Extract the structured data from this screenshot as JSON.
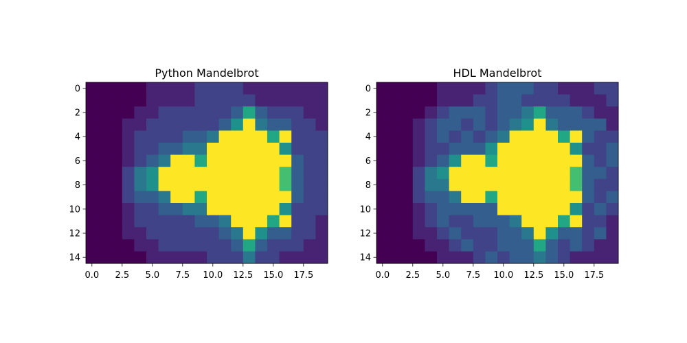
{
  "chart_data": [
    {
      "type": "heatmap",
      "title": "Python Mandelbrot",
      "xlabel": "",
      "ylabel": "",
      "xlim": [
        -0.5,
        19.5
      ],
      "ylim": [
        14.5,
        -0.5
      ],
      "xticks": [
        "0.0",
        "2.5",
        "5.0",
        "7.5",
        "10.0",
        "12.5",
        "15.0",
        "17.5"
      ],
      "yticks": [
        "0",
        "2",
        "4",
        "6",
        "8",
        "10",
        "12",
        "14"
      ],
      "colormap": "viridis",
      "vmin": 0,
      "vmax": 10,
      "values": [
        [
          0,
          0,
          0,
          0,
          0,
          1,
          1,
          1,
          1,
          2,
          2,
          2,
          2,
          1,
          1,
          1,
          1,
          1,
          1,
          1
        ],
        [
          0,
          0,
          0,
          0,
          0,
          1,
          1,
          1,
          1,
          2,
          2,
          2,
          2,
          2,
          1,
          1,
          1,
          1,
          1,
          1
        ],
        [
          0,
          0,
          0,
          0,
          1,
          1,
          2,
          2,
          2,
          2,
          2,
          2,
          3,
          6,
          3,
          2,
          2,
          2,
          1,
          1
        ],
        [
          0,
          0,
          0,
          1,
          1,
          2,
          2,
          2,
          2,
          2,
          2,
          3,
          5,
          10,
          4,
          3,
          3,
          2,
          2,
          1
        ],
        [
          0,
          0,
          0,
          1,
          2,
          2,
          2,
          2,
          3,
          3,
          4,
          10,
          10,
          10,
          10,
          6,
          10,
          2,
          2,
          2
        ],
        [
          0,
          0,
          0,
          1,
          2,
          2,
          3,
          3,
          4,
          4,
          10,
          10,
          10,
          10,
          10,
          10,
          5,
          2,
          2,
          2
        ],
        [
          0,
          0,
          0,
          1,
          2,
          3,
          4,
          10,
          10,
          6,
          10,
          10,
          10,
          10,
          10,
          10,
          10,
          3,
          2,
          2
        ],
        [
          0,
          0,
          0,
          2,
          4,
          5,
          10,
          10,
          10,
          10,
          10,
          10,
          10,
          10,
          10,
          10,
          7,
          3,
          2,
          2
        ],
        [
          0,
          0,
          0,
          2,
          4,
          5,
          10,
          10,
          10,
          10,
          10,
          10,
          10,
          10,
          10,
          10,
          7,
          3,
          2,
          2
        ],
        [
          0,
          0,
          0,
          2,
          3,
          3,
          4,
          10,
          10,
          6,
          10,
          10,
          10,
          10,
          10,
          10,
          10,
          3,
          2,
          2
        ],
        [
          0,
          0,
          0,
          1,
          2,
          2,
          3,
          3,
          4,
          4,
          10,
          10,
          10,
          10,
          10,
          10,
          5,
          2,
          2,
          2
        ],
        [
          0,
          0,
          0,
          1,
          2,
          2,
          2,
          2,
          2,
          3,
          3,
          4,
          10,
          10,
          10,
          6,
          10,
          2,
          2,
          1
        ],
        [
          0,
          0,
          0,
          1,
          1,
          2,
          2,
          2,
          2,
          2,
          2,
          3,
          4,
          10,
          5,
          3,
          3,
          2,
          2,
          1
        ],
        [
          0,
          0,
          0,
          0,
          1,
          1,
          2,
          2,
          2,
          2,
          2,
          2,
          3,
          6,
          3,
          2,
          2,
          2,
          1,
          1
        ],
        [
          0,
          0,
          0,
          0,
          0,
          1,
          1,
          1,
          1,
          1,
          2,
          2,
          2,
          4,
          2,
          2,
          1,
          1,
          1,
          1
        ]
      ]
    },
    {
      "type": "heatmap",
      "title": "HDL Mandelbrot",
      "xlabel": "",
      "ylabel": "",
      "xlim": [
        -0.5,
        19.5
      ],
      "ylim": [
        14.5,
        -0.5
      ],
      "xticks": [
        "0.0",
        "2.5",
        "5.0",
        "7.5",
        "10.0",
        "12.5",
        "15.0",
        "17.5"
      ],
      "yticks": [
        "0",
        "2",
        "4",
        "6",
        "8",
        "10",
        "12",
        "14"
      ],
      "colormap": "viridis",
      "vmin": 0,
      "vmax": 10,
      "values": [
        [
          0,
          0,
          0,
          0,
          0,
          1,
          1,
          1,
          1,
          2,
          3,
          3,
          3,
          2,
          2,
          1,
          1,
          1,
          2,
          2
        ],
        [
          0,
          0,
          0,
          0,
          0,
          1,
          1,
          1,
          2,
          2,
          3,
          3,
          2,
          2,
          2,
          2,
          1,
          1,
          1,
          2
        ],
        [
          0,
          0,
          0,
          0,
          1,
          2,
          3,
          3,
          3,
          2,
          3,
          3,
          4,
          6,
          3,
          3,
          3,
          2,
          1,
          1
        ],
        [
          0,
          0,
          0,
          1,
          2,
          3,
          3,
          2,
          3,
          2,
          3,
          4,
          5,
          10,
          4,
          3,
          3,
          3,
          3,
          1
        ],
        [
          0,
          0,
          0,
          1,
          2,
          3,
          2,
          3,
          2,
          3,
          4,
          10,
          10,
          10,
          10,
          6,
          10,
          3,
          2,
          2
        ],
        [
          0,
          0,
          0,
          1,
          2,
          2,
          3,
          3,
          3,
          5,
          10,
          10,
          10,
          10,
          10,
          10,
          5,
          2,
          2,
          3
        ],
        [
          0,
          0,
          0,
          1,
          2,
          3,
          5,
          10,
          10,
          6,
          10,
          10,
          10,
          10,
          10,
          10,
          10,
          3,
          2,
          3
        ],
        [
          0,
          0,
          0,
          2,
          4,
          5,
          10,
          10,
          10,
          10,
          10,
          10,
          10,
          10,
          10,
          10,
          7,
          3,
          3,
          2
        ],
        [
          0,
          0,
          0,
          2,
          4,
          4,
          10,
          10,
          10,
          10,
          10,
          10,
          10,
          10,
          10,
          10,
          7,
          3,
          2,
          2
        ],
        [
          0,
          0,
          0,
          2,
          3,
          3,
          4,
          10,
          10,
          6,
          10,
          10,
          10,
          10,
          10,
          10,
          10,
          3,
          2,
          3
        ],
        [
          0,
          0,
          0,
          1,
          2,
          3,
          3,
          3,
          3,
          3,
          10,
          10,
          10,
          10,
          10,
          10,
          5,
          2,
          3,
          2
        ],
        [
          0,
          0,
          0,
          1,
          2,
          3,
          2,
          2,
          3,
          3,
          3,
          4,
          10,
          10,
          10,
          6,
          10,
          2,
          2,
          1
        ],
        [
          0,
          0,
          0,
          1,
          1,
          2,
          3,
          2,
          2,
          2,
          3,
          3,
          4,
          10,
          5,
          3,
          3,
          2,
          3,
          1
        ],
        [
          0,
          0,
          0,
          0,
          1,
          1,
          2,
          3,
          2,
          2,
          3,
          3,
          3,
          6,
          3,
          2,
          3,
          2,
          1,
          1
        ],
        [
          0,
          0,
          0,
          0,
          0,
          1,
          1,
          1,
          2,
          3,
          2,
          3,
          3,
          4,
          3,
          2,
          1,
          1,
          1,
          1
        ]
      ]
    }
  ]
}
